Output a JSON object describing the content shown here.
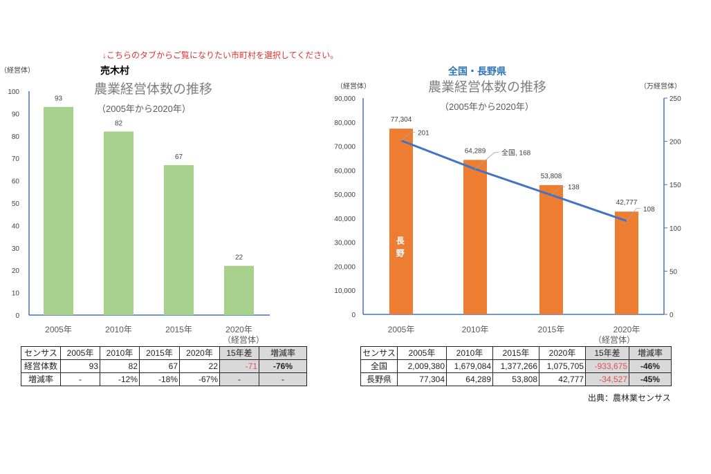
{
  "notice": "↓こちらのタブからご覧になりたい市町村を選択してください。",
  "source": "出典：農林業センサス",
  "chart_data": [
    {
      "type": "bar",
      "region": "売木村",
      "title": "農業経営体数の推移",
      "subtitle": "（2005年から2020年）",
      "ylabel": "（経営体）",
      "xlabel": "（経営体）",
      "categories": [
        "2005年",
        "2010年",
        "2015年",
        "2020年"
      ],
      "values": [
        93,
        82,
        67,
        22
      ],
      "ylim": [
        0,
        100
      ],
      "yticks": [
        0,
        10,
        20,
        30,
        40,
        50,
        60,
        70,
        80,
        90,
        100
      ],
      "bar_color": "#a9d18e",
      "grid": false
    },
    {
      "type": "bar+line",
      "region": "全国・長野県",
      "title": "農業経営体数の推移",
      "subtitle": "（2005年から2020年）",
      "ylabel": "（経営体）",
      "y2label": "（万経営体）",
      "xlabel": "（経営体）",
      "categories": [
        "2005年",
        "2010年",
        "2015年",
        "2020年"
      ],
      "series": [
        {
          "name": "長野",
          "type": "bar",
          "axis": "left",
          "values": [
            77304,
            64289,
            53808,
            42777
          ],
          "labels": [
            "77,304",
            "64,289",
            "53,808",
            "42,777"
          ],
          "color": "#ed7d31"
        },
        {
          "name": "全国",
          "type": "line",
          "axis": "right",
          "values": [
            201,
            168,
            138,
            108
          ],
          "labels": [
            "201",
            "全国, 168",
            "138",
            "108"
          ],
          "color": "#4472c4"
        }
      ],
      "ylim": [
        0,
        90000
      ],
      "yticks": [
        "0",
        "10,000",
        "20,000",
        "30,000",
        "40,000",
        "50,000",
        "60,000",
        "70,000",
        "80,000",
        "90,000"
      ],
      "y2lim": [
        0,
        250
      ],
      "y2ticks": [
        "0",
        "50",
        "100",
        "150",
        "200",
        "250"
      ],
      "grid": false
    }
  ],
  "left_table": {
    "header": [
      "センサス",
      "2005年",
      "2010年",
      "2015年",
      "2020年",
      "15年差",
      "増減率"
    ],
    "rows": [
      [
        "経営体数",
        "93",
        "82",
        "67",
        "22",
        "-71",
        "-76%"
      ],
      [
        "増減率",
        "-",
        "-12%",
        "-18%",
        "-67%",
        "-",
        "-"
      ]
    ]
  },
  "right_table": {
    "header": [
      "センサス",
      "2005年",
      "2010年",
      "2015年",
      "2020年",
      "15年差",
      "増減率"
    ],
    "rows": [
      [
        "全国",
        "2,009,380",
        "1,679,084",
        "1,377,266",
        "1,075,705",
        "-933,675",
        "-46%"
      ],
      [
        "長野県",
        "77,304",
        "64,289",
        "53,808",
        "42,777",
        "-34,527",
        "-45%"
      ]
    ]
  }
}
